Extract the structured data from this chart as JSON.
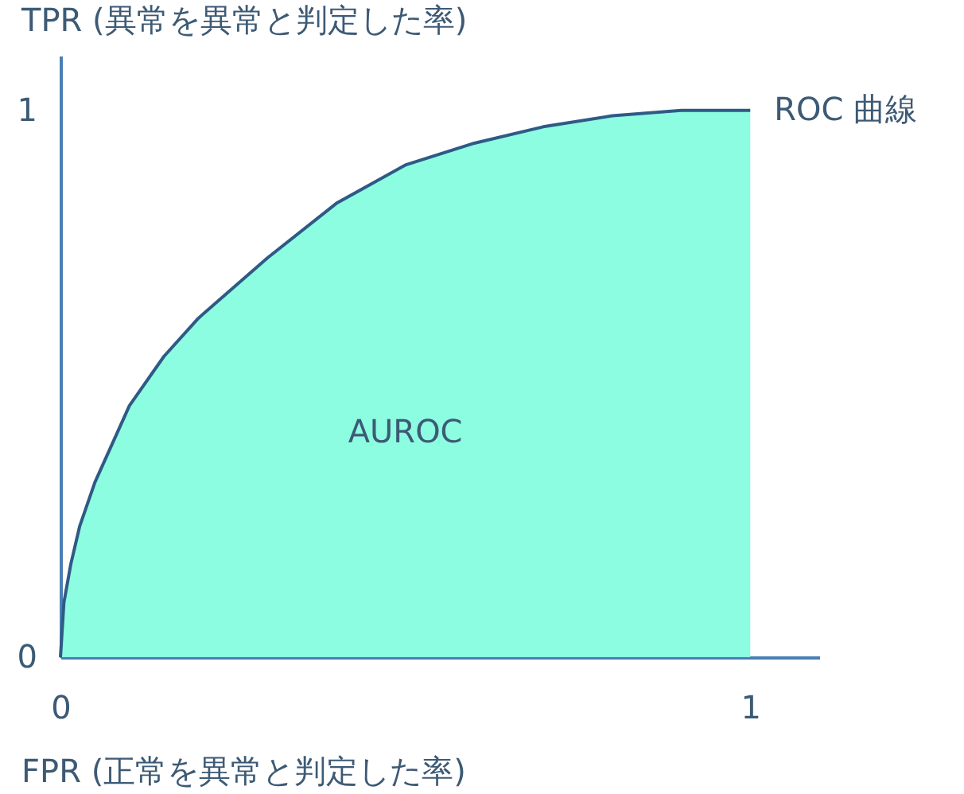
{
  "chart_data": {
    "type": "area",
    "xlabel": "FPR (正常を異常と判定した率)",
    "ylabel": "TPR (異常を異常と判定した率)",
    "x": [
      0,
      0.005,
      0.015,
      0.028,
      0.05,
      0.1,
      0.15,
      0.2,
      0.3,
      0.4,
      0.5,
      0.6,
      0.7,
      0.8,
      0.9,
      1
    ],
    "series": [
      {
        "color": "#8cfde0",
        "values": [
          0,
          0.1,
          0.17,
          0.24,
          0.32,
          0.46,
          0.55,
          0.62,
          0.73,
          0.83,
          0.9,
          0.94,
          0.97,
          0.99,
          1,
          1
        ]
      }
    ],
    "xlim": [
      0,
      1.1
    ],
    "ylim": [
      0,
      1.1
    ],
    "xticks": [
      0,
      1
    ],
    "yticks": [
      0,
      1
    ],
    "grid": false,
    "annotations": [
      {
        "text": "ROC 曲線",
        "x": 1,
        "y": 1
      },
      "AUROC"
    ]
  }
}
